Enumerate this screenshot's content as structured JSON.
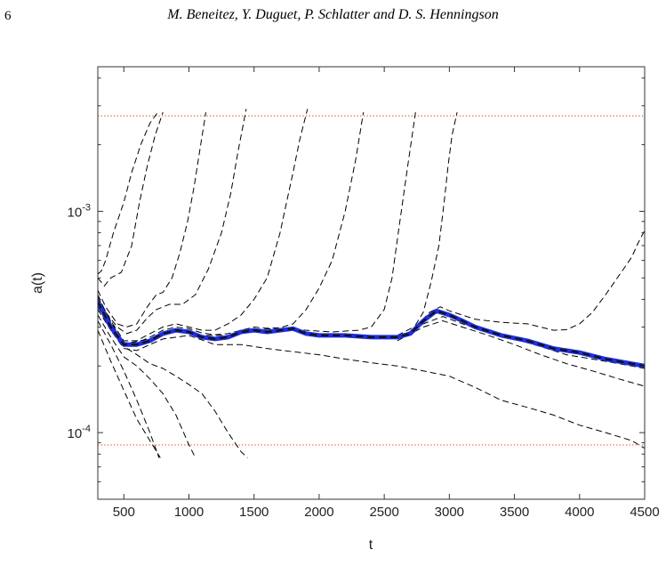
{
  "page": {
    "number": "6",
    "running_head": "M. Beneitez, Y. Duguet, P. Schlatter and D. S. Henningson"
  },
  "colors": {
    "bounds": "#e8402a",
    "trajectories": "#000000",
    "edge_state": "#1f2fe0",
    "edge_state_dash": "#111111"
  },
  "chart_data": {
    "type": "line",
    "xlabel": "t",
    "ylabel": "a(t)",
    "yscale": "log",
    "xlim": [
      300,
      4500
    ],
    "ylim": [
      5e-05,
      0.0045
    ],
    "xticks": [
      500,
      1000,
      1500,
      2000,
      2500,
      3000,
      3500,
      4000,
      4500
    ],
    "xtick_labels": [
      "500",
      "1000",
      "1500",
      "2000",
      "2500",
      "3000",
      "3500",
      "4000",
      "4500"
    ],
    "yticks": [
      0.0001,
      0.001
    ],
    "ytick_labels": [
      {
        "base": "10",
        "exp": "-4"
      },
      {
        "base": "10",
        "exp": "-3"
      }
    ],
    "grid": false,
    "horizontal_lines": [
      0.0027,
      8.8e-05
    ],
    "edge_state": {
      "x": [
        300,
        400,
        500,
        600,
        700,
        800,
        900,
        1000,
        1100,
        1200,
        1300,
        1400,
        1500,
        1600,
        1700,
        1800,
        1900,
        2000,
        2200,
        2400,
        2600,
        2700,
        2800,
        2900,
        3000,
        3100,
        3200,
        3400,
        3600,
        3800,
        4000,
        4200,
        4500
      ],
      "y": [
        0.00039,
        0.0003,
        0.00025,
        0.00025,
        0.00026,
        0.00028,
        0.00029,
        0.000285,
        0.00027,
        0.000265,
        0.00027,
        0.000285,
        0.00029,
        0.000285,
        0.00029,
        0.000295,
        0.00028,
        0.000275,
        0.000275,
        0.00027,
        0.00027,
        0.00028,
        0.00032,
        0.000355,
        0.00034,
        0.00032,
        0.0003,
        0.000275,
        0.00026,
        0.00024,
        0.00023,
        0.000215,
        0.0002
      ]
    },
    "trajectories": [
      {
        "x": [
          300,
          330,
          360,
          420,
          500,
          560,
          630,
          700,
          760
        ],
        "y": [
          0.00052,
          0.00054,
          0.0006,
          0.0008,
          0.0011,
          0.0015,
          0.002,
          0.0025,
          0.0028
        ]
      },
      {
        "x": [
          300,
          350,
          400,
          480,
          560,
          620,
          680,
          740,
          800
        ],
        "y": [
          0.0005,
          0.00046,
          0.0005,
          0.00053,
          0.0007,
          0.0011,
          0.0016,
          0.0022,
          0.0028
        ]
      },
      {
        "x": [
          300,
          360,
          450,
          520,
          600,
          680,
          750,
          800,
          870,
          930,
          990,
          1040,
          1090,
          1130
        ],
        "y": [
          0.00044,
          0.00037,
          0.00031,
          0.0003,
          0.00031,
          0.00037,
          0.00042,
          0.00043,
          0.0005,
          0.00065,
          0.0009,
          0.0013,
          0.002,
          0.0028
        ]
      },
      {
        "x": [
          300,
          360,
          450,
          520,
          600,
          680,
          750,
          850,
          950,
          1050,
          1150,
          1250,
          1320,
          1380,
          1440
        ],
        "y": [
          0.00042,
          0.00035,
          0.0003,
          0.00028,
          0.00029,
          0.00033,
          0.00036,
          0.00038,
          0.00038,
          0.00042,
          0.00055,
          0.0008,
          0.0012,
          0.0019,
          0.0029
        ]
      },
      {
        "x": [
          300,
          400,
          500,
          600,
          700,
          800,
          900,
          1000,
          1100,
          1200,
          1300,
          1400,
          1500,
          1600,
          1700,
          1750,
          1800,
          1850,
          1910
        ],
        "y": [
          0.00041,
          0.00032,
          0.00026,
          0.00026,
          0.00028,
          0.0003,
          0.00031,
          0.0003,
          0.00029,
          0.00029,
          0.00031,
          0.00034,
          0.0004,
          0.0005,
          0.0008,
          0.0011,
          0.0015,
          0.0021,
          0.0029
        ]
      },
      {
        "x": [
          300,
          400,
          500,
          600,
          700,
          800,
          900,
          1000,
          1100,
          1200,
          1300,
          1400,
          1500,
          1600,
          1700,
          1800,
          1900,
          2000,
          2100,
          2200,
          2280,
          2340
        ],
        "y": [
          0.000405,
          0.00031,
          0.000255,
          0.000255,
          0.00027,
          0.00029,
          0.0003,
          0.000295,
          0.000282,
          0.000277,
          0.00028,
          0.00029,
          0.0003,
          0.000296,
          0.000298,
          0.00031,
          0.00036,
          0.00045,
          0.0006,
          0.001,
          0.0017,
          0.0028
        ]
      },
      {
        "x": [
          300,
          500,
          700,
          900,
          1100,
          1300,
          1500,
          1700,
          1900,
          2100,
          2300,
          2400,
          2500,
          2560,
          2620,
          2680,
          2740
        ],
        "y": [
          0.0004,
          0.000252,
          0.000265,
          0.000293,
          0.000275,
          0.000275,
          0.000293,
          0.000295,
          0.00029,
          0.000285,
          0.00029,
          0.0003,
          0.00036,
          0.0005,
          0.0009,
          0.0016,
          0.0028
        ]
      },
      {
        "x": [
          2700,
          2800,
          2860,
          2920,
          2960,
          2990,
          3020,
          3060
        ],
        "y": [
          0.00028,
          0.00035,
          0.00048,
          0.0007,
          0.0011,
          0.0016,
          0.0022,
          0.0028
        ]
      },
      {
        "x": [
          2600,
          2750,
          2850,
          2930,
          3000,
          3100,
          3200,
          3400,
          3600,
          3700,
          3800,
          3900,
          4000,
          4100,
          4200,
          4300,
          4400,
          4450,
          4500
        ],
        "y": [
          0.000275,
          0.000305,
          0.00035,
          0.00037,
          0.000355,
          0.00034,
          0.000325,
          0.000315,
          0.00031,
          0.0003,
          0.00029,
          0.000292,
          0.00031,
          0.00035,
          0.00042,
          0.00051,
          0.00062,
          0.00072,
          0.00082
        ]
      },
      {
        "x": [
          2600,
          2800,
          2950,
          3100,
          3300,
          3500,
          3700,
          3900,
          4100,
          4300,
          4500
        ],
        "y": [
          0.000265,
          0.00031,
          0.000335,
          0.00031,
          0.000285,
          0.000265,
          0.000245,
          0.000225,
          0.000215,
          0.000205,
          0.000195
        ]
      },
      {
        "x": [
          2600,
          2800,
          2950,
          3100,
          3300,
          3500,
          3700,
          3900,
          4100,
          4300,
          4500
        ],
        "y": [
          0.00026,
          0.0003,
          0.00032,
          0.0003,
          0.000275,
          0.00025,
          0.000225,
          0.000205,
          0.00019,
          0.000175,
          0.000162
        ]
      },
      {
        "x": [
          300,
          400,
          500,
          600,
          700,
          800,
          1000,
          1200,
          1400,
          1600,
          1800,
          2000,
          2200,
          2400,
          2600,
          2800,
          3000,
          3200,
          3400,
          3600,
          3800,
          4000,
          4200,
          4400,
          4500
        ],
        "y": [
          0.00037,
          0.00029,
          0.00024,
          0.000235,
          0.00025,
          0.000265,
          0.000275,
          0.00025,
          0.00025,
          0.00024,
          0.000232,
          0.000225,
          0.000215,
          0.000207,
          0.0002,
          0.00019,
          0.00018,
          0.00016,
          0.00014,
          0.00013,
          0.00012,
          0.000108,
          0.0001,
          9.2e-05,
          8.5e-05
        ]
      },
      {
        "x": [
          300,
          400,
          500,
          600,
          700,
          800,
          900,
          1000,
          1100,
          1200,
          1300,
          1400,
          1450
        ],
        "y": [
          0.00036,
          0.00029,
          0.000245,
          0.000225,
          0.000205,
          0.000195,
          0.00018,
          0.000165,
          0.00015,
          0.000125,
          0.0001,
          8.2e-05,
          7.7e-05
        ]
      },
      {
        "x": [
          300,
          400,
          500,
          600,
          700,
          800,
          900,
          1000,
          1040
        ],
        "y": [
          0.00034,
          0.00027,
          0.00022,
          0.0002,
          0.000175,
          0.00015,
          0.00012,
          8.8e-05,
          7.9e-05
        ]
      },
      {
        "x": [
          300,
          400,
          500,
          600,
          700,
          770
        ],
        "y": [
          0.00032,
          0.00025,
          0.00019,
          0.00014,
          0.0001,
          7.7e-05
        ]
      },
      {
        "x": [
          300,
          400,
          500,
          600,
          700,
          780
        ],
        "y": [
          0.00029,
          0.00021,
          0.000155,
          0.000115,
          9.2e-05,
          7.7e-05
        ]
      }
    ]
  }
}
